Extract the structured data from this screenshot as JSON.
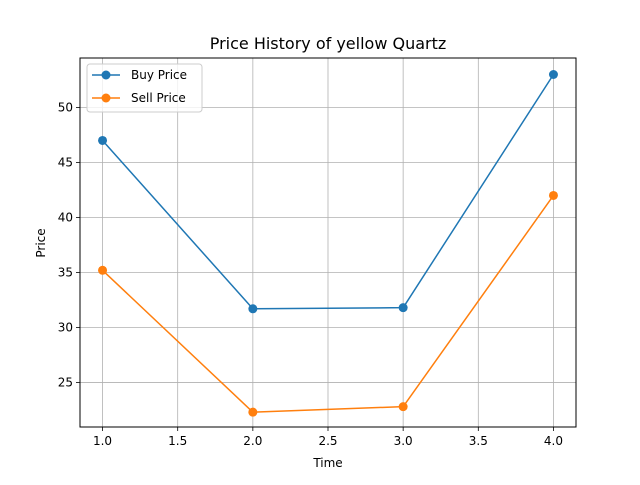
{
  "chart_data": {
    "type": "line",
    "title": "Price History of yellow Quartz",
    "xlabel": "Time",
    "ylabel": "Price",
    "xlim": [
      0.85,
      4.15
    ],
    "ylim": [
      20.95,
      54.5
    ],
    "x_ticks": [
      1.0,
      1.5,
      2.0,
      2.5,
      3.0,
      3.5,
      4.0
    ],
    "x_tick_labels": [
      "1.0",
      "1.5",
      "2.0",
      "2.5",
      "3.0",
      "3.5",
      "4.0"
    ],
    "y_ticks": [
      25,
      30,
      35,
      40,
      45,
      50
    ],
    "y_tick_labels": [
      "25",
      "30",
      "35",
      "40",
      "45",
      "50"
    ],
    "grid": true,
    "legend_position": "top-left",
    "x": [
      1.0,
      2.0,
      3.0,
      4.0
    ],
    "series": [
      {
        "name": "Buy Price",
        "values": [
          47.0,
          31.7,
          31.8,
          53.0
        ],
        "color": "#1f77b4",
        "marker": "circle"
      },
      {
        "name": "Sell Price",
        "values": [
          35.2,
          22.3,
          22.8,
          42.0
        ],
        "color": "#ff7f0e",
        "marker": "circle"
      }
    ]
  }
}
